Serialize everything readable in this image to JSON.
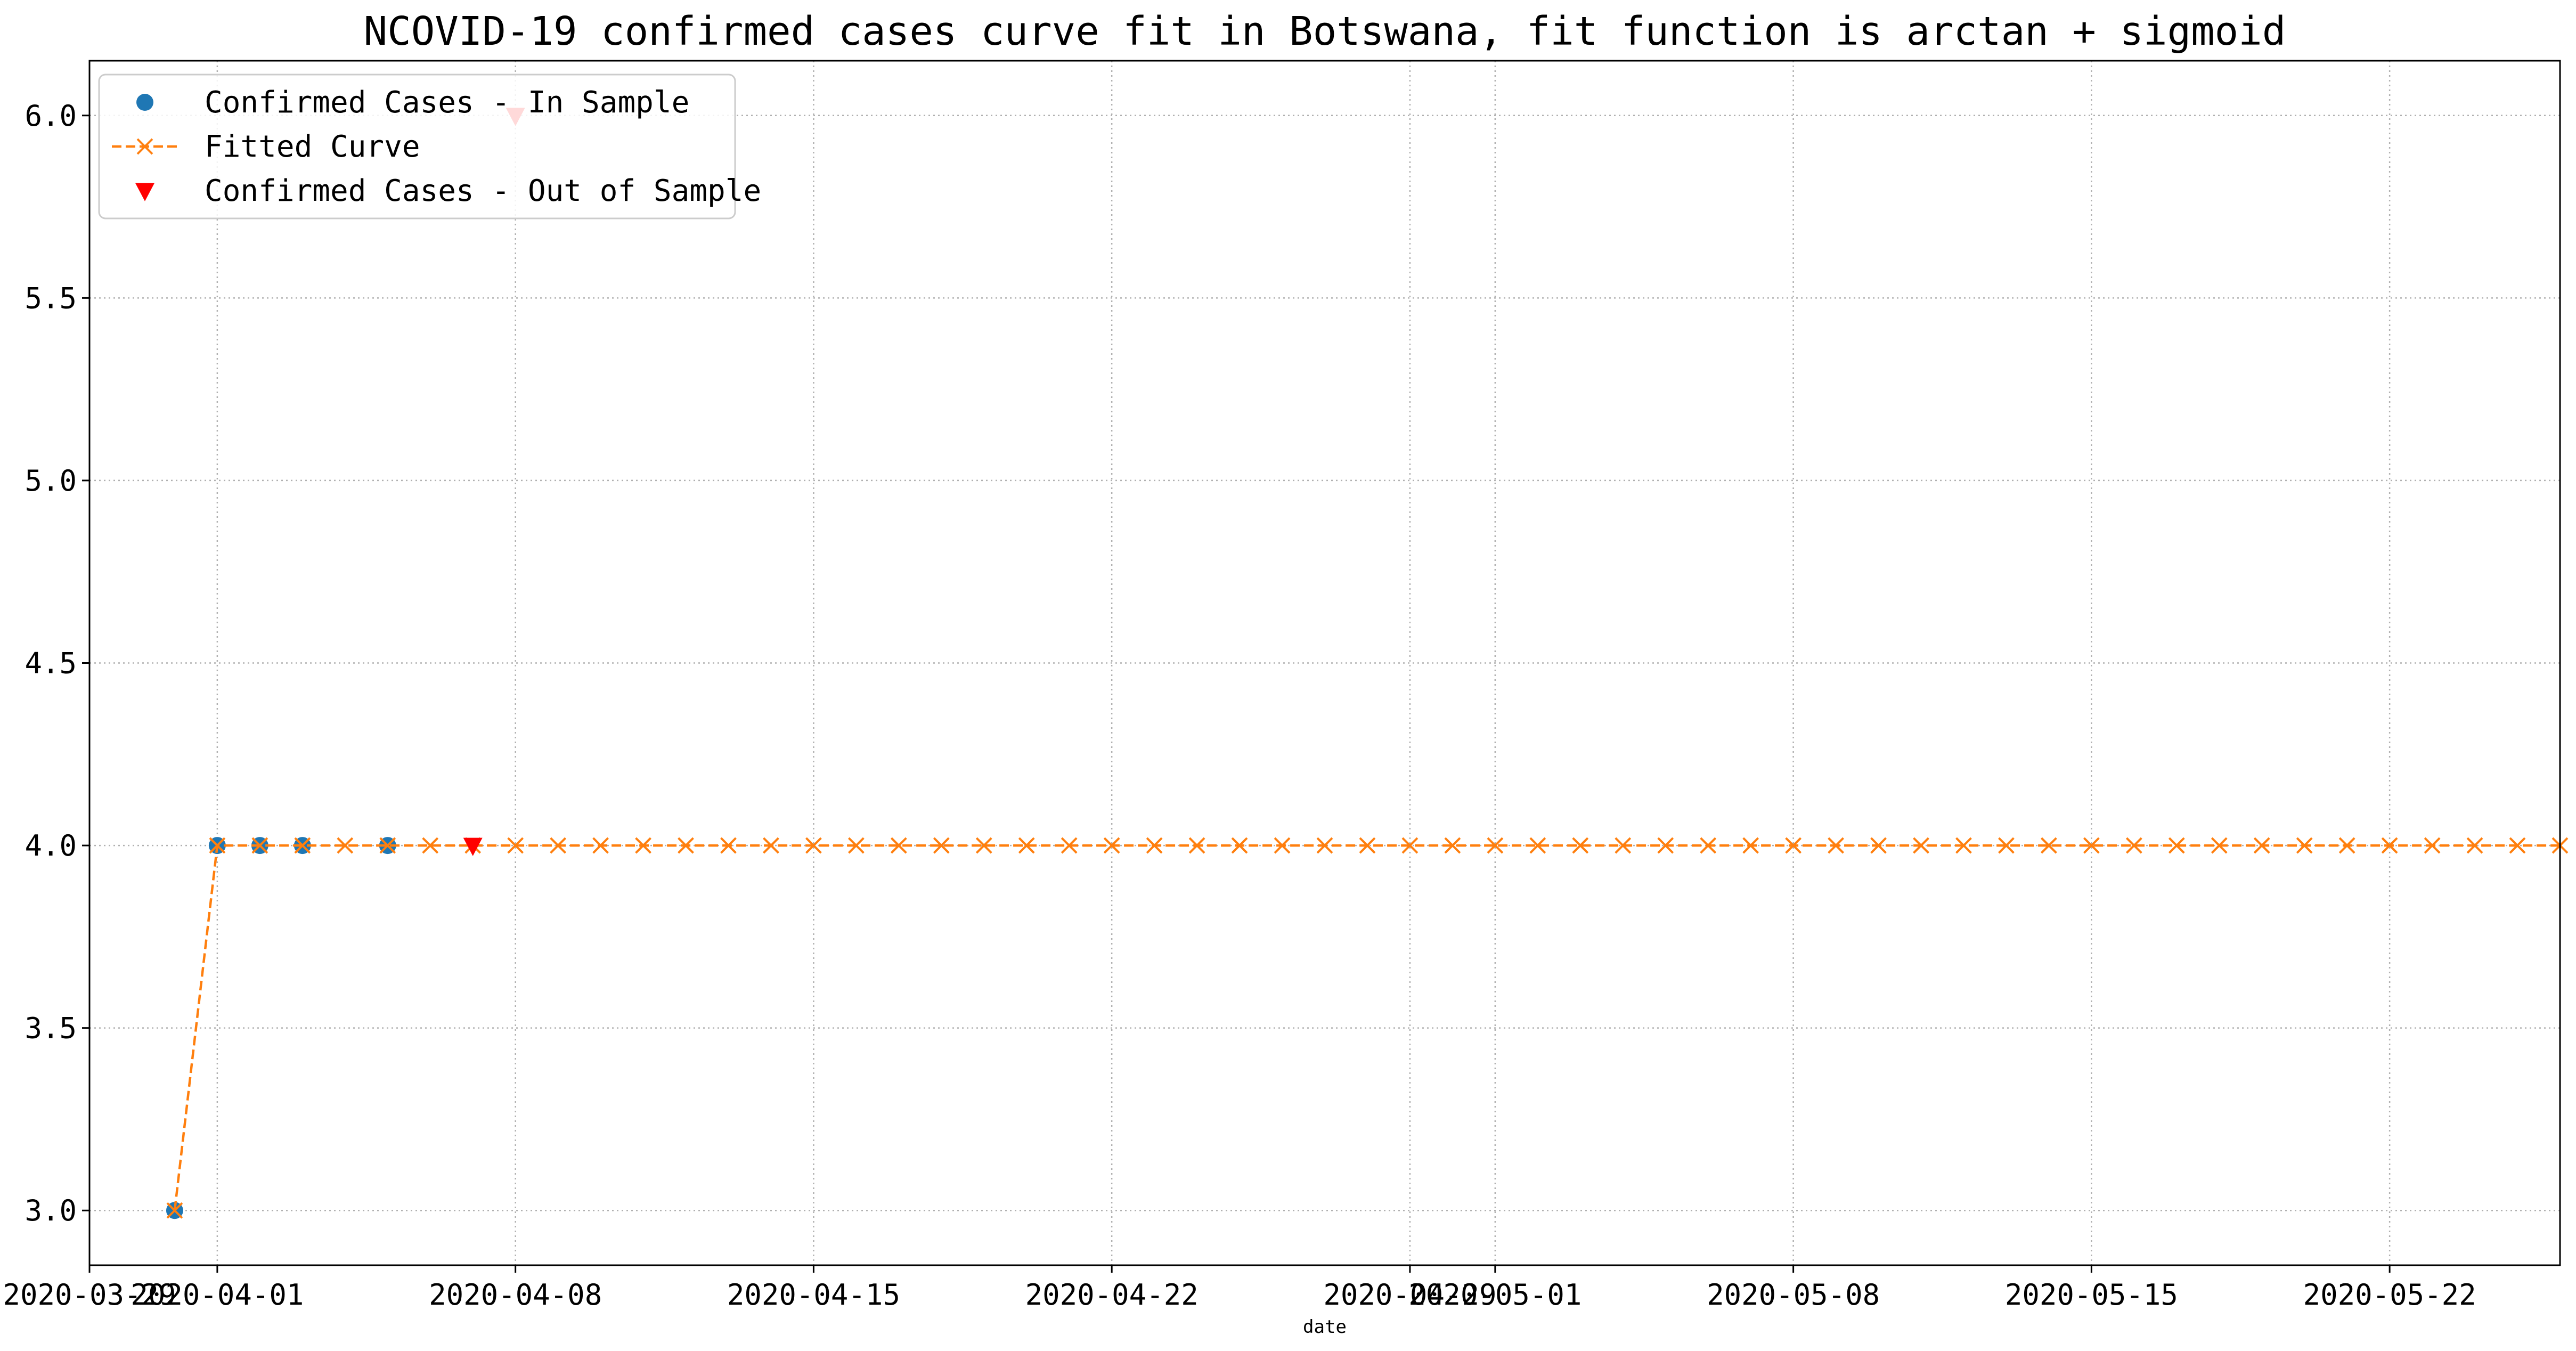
{
  "chart_data": {
    "type": "line",
    "title": "NCOVID-19 confirmed cases curve fit in Botswana, fit function is arctan + sigmoid",
    "xlabel": "date",
    "ylabel": "",
    "x_axis_type": "date",
    "xlim": [
      "2020-03-29",
      "2020-05-26"
    ],
    "ylim": [
      2.85,
      6.15
    ],
    "y_ticks": [
      3.0,
      3.5,
      4.0,
      4.5,
      5.0,
      5.5,
      6.0
    ],
    "y_tick_labels": [
      "3.0",
      "3.5",
      "4.0",
      "4.5",
      "5.0",
      "5.5",
      "6.0"
    ],
    "x_ticks": [
      "2020-03-29",
      "2020-04-01",
      "2020-04-08",
      "2020-04-15",
      "2020-04-22",
      "2020-04-29",
      "2020-05-01",
      "2020-05-08",
      "2020-05-15",
      "2020-05-22"
    ],
    "x_tick_labels": [
      "2020-03-29",
      "2020-04-01",
      "2020-04-08",
      "2020-04-15",
      "2020-04-22",
      "2020-04-29",
      "2020-05-01",
      "2020-05-08",
      "2020-05-15",
      "2020-05-22"
    ],
    "grid": true,
    "legend_position": "top-left",
    "series": [
      {
        "name": "Confirmed Cases - In Sample",
        "style": "markers",
        "marker": "circle",
        "color": "#1f77b4",
        "points": [
          {
            "x": "2020-03-31",
            "y": 3
          },
          {
            "x": "2020-04-01",
            "y": 4
          },
          {
            "x": "2020-04-02",
            "y": 4
          },
          {
            "x": "2020-04-03",
            "y": 4
          },
          {
            "x": "2020-04-05",
            "y": 4
          }
        ]
      },
      {
        "name": "Fitted Curve",
        "style": "dashed-line-x-markers",
        "marker": "x",
        "color": "#ff7f0e",
        "x_start": "2020-03-31",
        "values": [
          3,
          4,
          4,
          4,
          4,
          4,
          4,
          4,
          4,
          4,
          4,
          4,
          4,
          4,
          4,
          4,
          4,
          4,
          4,
          4,
          4,
          4,
          4,
          4,
          4,
          4,
          4,
          4,
          4,
          4,
          4,
          4,
          4,
          4,
          4,
          4,
          4,
          4,
          4,
          4,
          4,
          4,
          4,
          4,
          4,
          4,
          4,
          4,
          4,
          4,
          4,
          4,
          4,
          4,
          4,
          4,
          4
        ]
      },
      {
        "name": "Confirmed Cases - Out of Sample",
        "style": "markers",
        "marker": "triangle-down",
        "color": "#ff0000",
        "points": [
          {
            "x": "2020-04-07",
            "y": 4
          },
          {
            "x": "2020-04-08",
            "y": 6
          }
        ]
      }
    ]
  }
}
